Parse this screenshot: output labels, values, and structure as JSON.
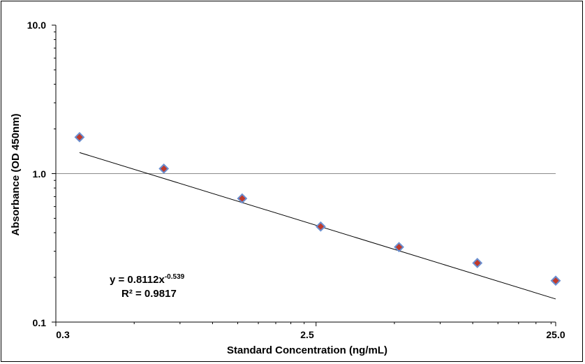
{
  "chart_data": {
    "type": "scatter",
    "xlabel": "Standard Concentration (ng/mL)",
    "ylabel": "Absorbance (OD 450nm)",
    "x_scale": "log",
    "y_scale": "log",
    "xlim": [
      0.3,
      25.0
    ],
    "ylim": [
      0.1,
      10.0
    ],
    "x_tick_labels": [
      "0.3",
      "2.5",
      "25.0"
    ],
    "y_tick_labels": [
      "10.0",
      "1.0",
      "0.1"
    ],
    "grid": "horizontal major only",
    "series": [
      {
        "x": [
          0.37,
          0.78,
          1.56,
          3.125,
          6.25,
          12.5,
          25.0
        ],
        "y": [
          1.76,
          1.08,
          0.68,
          0.44,
          0.32,
          0.25,
          0.19
        ],
        "marker": "diamond",
        "marker_fill": "#c0392b",
        "marker_edge": "#6a8fd0"
      }
    ],
    "trendline": {
      "type": "power",
      "a": 0.8112,
      "b": -0.539,
      "color": "#000000"
    },
    "annotation": {
      "equation_main": "y = 0.8112x",
      "equation_exp": "-0.539",
      "r_squared": "R² = 0.9817"
    }
  }
}
